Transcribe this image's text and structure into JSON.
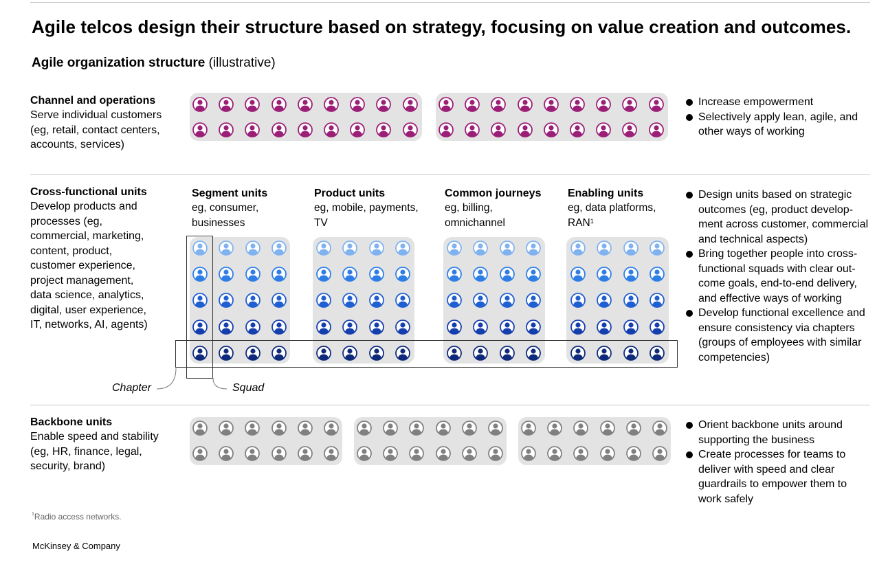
{
  "title": "Agile telcos design their structure based on strategy, focusing on value creation and outcomes.",
  "subtitle": {
    "bold": "Agile organization structure",
    "rest": " (illustrative)"
  },
  "colors": {
    "magenta": "#9b1f77",
    "blue_1": "#7fb2ef",
    "blue_2": "#2e7ee6",
    "blue_3": "#1f5fd1",
    "blue_4": "#163fae",
    "blue_5": "#0f2a7a",
    "gray": "#808080",
    "box": "#e3e3e3"
  },
  "sections": {
    "channel": {
      "heading": "Channel and operations",
      "description": "Serve individual customers (eg, retail, contact centers, accounts, services)",
      "bullets": [
        "Increase empowerment",
        "Selectively apply lean, agile, and other ways of working"
      ]
    },
    "cross": {
      "heading": "Cross-functional units",
      "description": "Develop products and processes (eg, commercial, marketing, content, product, customer experience, project management, data science, analytics, digital, user experience, IT, networks, AI, agents)",
      "groups": [
        {
          "heading": "Segment units",
          "description": "eg, consumer, businesses"
        },
        {
          "heading": "Product units",
          "description": "eg, mobile, payments, TV"
        },
        {
          "heading": "Common journeys",
          "description": "eg, billing, omnichannel"
        },
        {
          "heading": "Enabling units",
          "description": "eg, data platforms, RAN",
          "footnote_mark": "1"
        }
      ],
      "bullets": [
        "Design units based on strategic outcomes (eg, product develop-ment across customer, commercial and technical aspects)",
        "Bring together people into cross-functional squads with clear out-come goals, end-to-end delivery, and effective ways of working",
        "Develop functional excellence and ensure consistency via chapters (groups of employees with similar competencies)"
      ],
      "chapter_label": "Chapter",
      "squad_label": "Squad"
    },
    "backbone": {
      "heading": "Backbone units",
      "description": "Enable speed and stability (eg, HR, finance, legal, security, brand)",
      "bullets": [
        "Orient backbone units around supporting the business",
        "Create processes for teams to deliver with speed and clear guardrails to empower them to work safely"
      ]
    }
  },
  "footnote": {
    "mark": "1",
    "text": "Radio access networks."
  },
  "brand": "McKinsey & Company"
}
